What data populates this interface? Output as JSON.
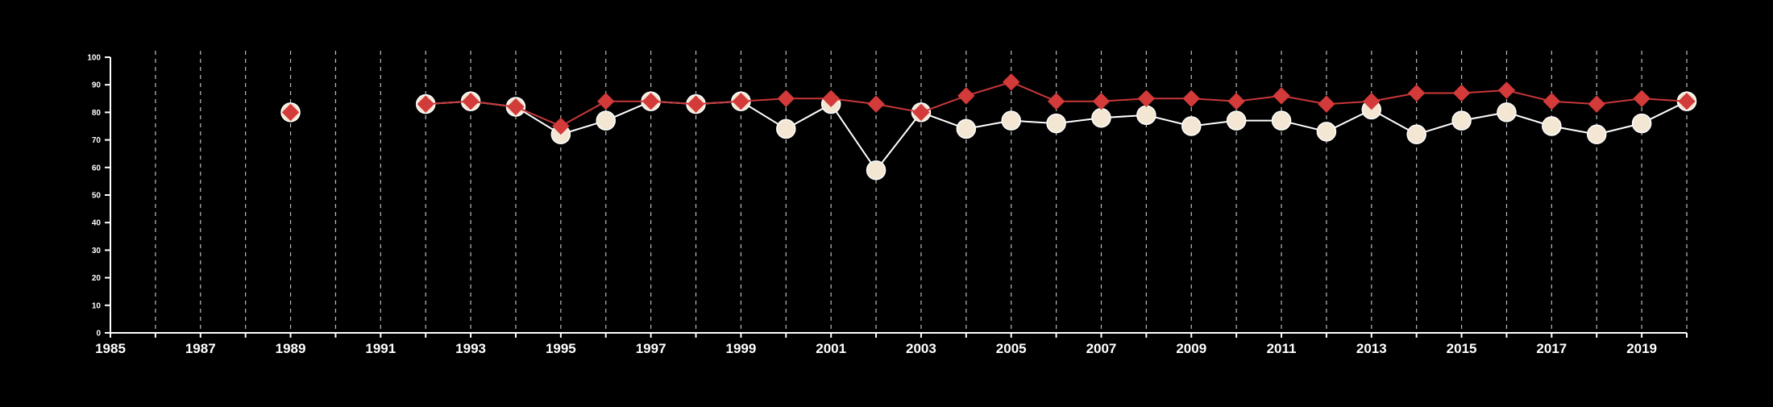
{
  "chart_data": {
    "type": "line",
    "title": "",
    "xlabel": "",
    "ylabel": "",
    "xlim": [
      1985,
      2020
    ],
    "ylim": [
      0,
      100
    ],
    "x_tick_labels": [
      "1985",
      "1987",
      "1989",
      "1991",
      "1993",
      "1995",
      "1997",
      "1999",
      "2001",
      "2003",
      "2005",
      "2007",
      "2009",
      "2011",
      "2013",
      "2015",
      "2017",
      "2019"
    ],
    "y_tick_labels": [
      "0",
      "10",
      "20",
      "30",
      "40",
      "50",
      "60",
      "70",
      "80",
      "90",
      "100"
    ],
    "x_ticks": [
      1985,
      1986,
      1987,
      1988,
      1989,
      1990,
      1991,
      1992,
      1993,
      1994,
      1995,
      1996,
      1997,
      1998,
      1999,
      2000,
      2001,
      2002,
      2003,
      2004,
      2005,
      2006,
      2007,
      2008,
      2009,
      2010,
      2011,
      2012,
      2013,
      2014,
      2015,
      2016,
      2017,
      2018,
      2019,
      2020
    ],
    "y_ticks": [
      0,
      10,
      20,
      30,
      40,
      50,
      60,
      70,
      80,
      90,
      100
    ],
    "grid": "vertical dashed",
    "legend": "none",
    "series": [
      {
        "marker": "circle",
        "color": "#f3e6d3",
        "line_color": "#ffffff",
        "points": [
          [
            1989,
            80
          ],
          [
            1992,
            83
          ],
          [
            1993,
            84
          ],
          [
            1994,
            82
          ],
          [
            1995,
            72
          ],
          [
            1996,
            77
          ],
          [
            1997,
            84
          ],
          [
            1998,
            83
          ],
          [
            1999,
            84
          ],
          [
            2000,
            74
          ],
          [
            2001,
            83
          ],
          [
            2002,
            59
          ],
          [
            2003,
            80
          ],
          [
            2004,
            74
          ],
          [
            2005,
            77
          ],
          [
            2006,
            76
          ],
          [
            2007,
            78
          ],
          [
            2008,
            79
          ],
          [
            2009,
            75
          ],
          [
            2010,
            77
          ],
          [
            2011,
            77
          ],
          [
            2012,
            73
          ],
          [
            2013,
            81
          ],
          [
            2014,
            72
          ],
          [
            2015,
            77
          ],
          [
            2016,
            80
          ],
          [
            2017,
            75
          ],
          [
            2018,
            72
          ],
          [
            2019,
            76
          ],
          [
            2020,
            84
          ]
        ]
      },
      {
        "marker": "diamond",
        "color": "#d33a3a",
        "line_color": "#c8373a",
        "points": [
          [
            1989,
            80
          ],
          [
            1992,
            83
          ],
          [
            1993,
            84
          ],
          [
            1994,
            82
          ],
          [
            1995,
            75
          ],
          [
            1996,
            84
          ],
          [
            1997,
            84
          ],
          [
            1998,
            83
          ],
          [
            1999,
            84
          ],
          [
            2000,
            85
          ],
          [
            2001,
            85
          ],
          [
            2002,
            83
          ],
          [
            2003,
            80
          ],
          [
            2004,
            86
          ],
          [
            2005,
            91
          ],
          [
            2006,
            84
          ],
          [
            2007,
            84
          ],
          [
            2008,
            85
          ],
          [
            2009,
            85
          ],
          [
            2010,
            84
          ],
          [
            2011,
            86
          ],
          [
            2012,
            83
          ],
          [
            2013,
            84
          ],
          [
            2014,
            87
          ],
          [
            2015,
            87
          ],
          [
            2016,
            88
          ],
          [
            2017,
            84
          ],
          [
            2018,
            83
          ],
          [
            2019,
            85
          ],
          [
            2020,
            84
          ]
        ]
      }
    ]
  }
}
